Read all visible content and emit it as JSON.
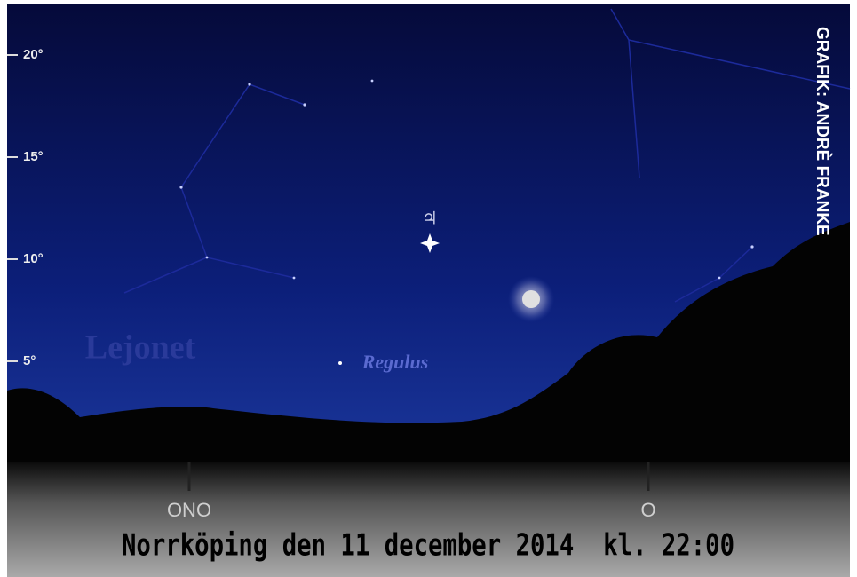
{
  "altitude_scale": {
    "ticks": [
      {
        "value": 20,
        "label": "20°"
      },
      {
        "value": 15,
        "label": "15°"
      },
      {
        "value": 10,
        "label": "10°"
      },
      {
        "value": 5,
        "label": "5°"
      }
    ],
    "range": [
      0,
      22
    ]
  },
  "labels": {
    "constellation": "Lejonet",
    "star": "Regulus",
    "planet": "♃"
  },
  "directions": [
    "ONO",
    "O"
  ],
  "caption": "Norrköping den 11 december 2014  kl. 22:00",
  "credit": "GRAFIK: ANDRÈ FRANKE"
}
